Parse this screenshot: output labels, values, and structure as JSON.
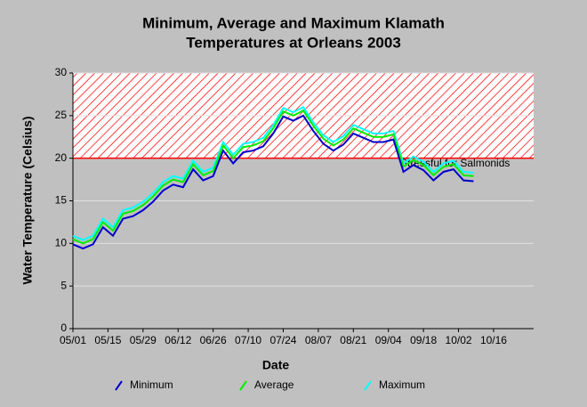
{
  "chart_data": {
    "type": "line",
    "title": [
      "Minimum, Average and Maximum Klamath",
      "Temperatures at Orleans 2003"
    ],
    "x_label": "Date",
    "y_label": "Water Temperature (Celsius)",
    "annotation": "Stressful for Salmonids",
    "threshold": 20,
    "threshold_color": "#ff0000",
    "x": [
      "05/01",
      "05/05",
      "05/09",
      "05/13",
      "05/17",
      "05/21",
      "05/25",
      "05/29",
      "06/02",
      "06/06",
      "06/10",
      "06/14",
      "06/18",
      "06/22",
      "06/26",
      "06/30",
      "07/04",
      "07/08",
      "07/12",
      "07/16",
      "07/20",
      "07/24",
      "07/28",
      "08/01",
      "08/05",
      "08/09",
      "08/13",
      "08/17",
      "08/21",
      "08/25",
      "08/29",
      "09/02",
      "09/06",
      "09/10",
      "09/14",
      "09/18",
      "09/22",
      "09/26",
      "09/30",
      "10/04",
      "10/08"
    ],
    "series": [
      {
        "name": "Minimum",
        "color": "#0000cc",
        "values": [
          9.9,
          9.4,
          9.9,
          11.9,
          10.9,
          12.9,
          13.2,
          13.9,
          14.9,
          16.2,
          16.9,
          16.6,
          18.7,
          17.4,
          17.9,
          20.9,
          19.4,
          20.7,
          20.9,
          21.4,
          22.9,
          24.9,
          24.4,
          25.0,
          23.2,
          21.7,
          20.9,
          21.6,
          22.9,
          22.4,
          21.9,
          21.9,
          22.2,
          18.4,
          19.2,
          18.6,
          17.4,
          18.4,
          18.7,
          17.4,
          17.3
        ]
      },
      {
        "name": "Average",
        "color": "#00ee00",
        "values": [
          10.5,
          10.0,
          10.5,
          12.5,
          11.5,
          13.5,
          13.8,
          14.5,
          15.5,
          16.8,
          17.5,
          17.2,
          19.3,
          18.0,
          18.5,
          21.5,
          20.0,
          21.3,
          21.5,
          22.0,
          23.5,
          25.5,
          25.0,
          25.6,
          23.8,
          22.3,
          21.5,
          22.2,
          23.5,
          23.0,
          22.5,
          22.5,
          22.8,
          19.0,
          19.8,
          19.2,
          18.0,
          19.0,
          19.3,
          18.0,
          17.9
        ]
      },
      {
        "name": "Maximum",
        "color": "#00ffff",
        "values": [
          10.9,
          10.4,
          10.9,
          12.9,
          11.9,
          13.9,
          14.2,
          14.9,
          15.9,
          17.2,
          17.9,
          17.6,
          19.7,
          18.4,
          18.9,
          21.9,
          20.4,
          21.7,
          21.9,
          22.4,
          23.9,
          25.9,
          25.4,
          26.0,
          24.2,
          22.7,
          21.9,
          22.6,
          23.9,
          23.4,
          22.9,
          22.9,
          23.2,
          19.4,
          20.2,
          19.6,
          18.4,
          19.4,
          19.7,
          18.4,
          18.3
        ]
      }
    ],
    "xlim": [
      "05/01",
      "11/01"
    ],
    "xticks": [
      "05/01",
      "05/15",
      "05/29",
      "06/12",
      "06/26",
      "07/10",
      "07/24",
      "08/07",
      "08/21",
      "09/04",
      "09/18",
      "10/02",
      "10/16"
    ],
    "ylim": [
      0,
      30
    ],
    "yticks": [
      0,
      5,
      10,
      15,
      20,
      25,
      30
    ],
    "grid": true
  }
}
